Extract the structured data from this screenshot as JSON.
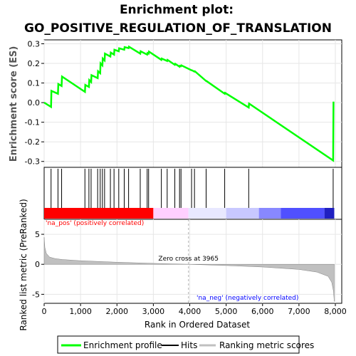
{
  "title_line1": "Enrichment plot:",
  "title_line2": "GO_POSITIVE_REGULATION_OF_TRANSLATION",
  "colors": {
    "enrichment_line": "#00ff00",
    "hits": "#000000",
    "metric_fill": "#c0c0c0",
    "pos_label": "#ff0000",
    "neg_label": "#0000ff"
  },
  "chart_data": [
    {
      "type": "line",
      "panel": "enrichment",
      "ylabel": "Enrichment score (ES)",
      "ylim": [
        -0.33,
        0.32
      ],
      "yticks": [
        -0.3,
        -0.2,
        -0.1,
        0.0,
        0.1,
        0.2,
        0.3
      ],
      "xlim": [
        0,
        8000
      ],
      "series": [
        {
          "name": "Enrichment profile",
          "x": [
            0,
            190,
            200,
            380,
            390,
            480,
            490,
            1120,
            1130,
            1230,
            1240,
            1290,
            1300,
            1470,
            1480,
            1540,
            1550,
            1600,
            1610,
            1660,
            1670,
            1820,
            1830,
            1920,
            1930,
            2050,
            2060,
            2200,
            2210,
            2320,
            2330,
            2640,
            2650,
            2830,
            2840,
            2870,
            2880,
            3220,
            3230,
            3380,
            3390,
            3590,
            3600,
            3720,
            3730,
            3760,
            3770,
            4050,
            4060,
            4130,
            4140,
            4450,
            4460,
            4960,
            4970,
            5620,
            5630,
            7940,
            7950
          ],
          "values": [
            0.0,
            -0.022,
            0.06,
            0.045,
            0.095,
            0.085,
            0.133,
            0.055,
            0.09,
            0.08,
            0.115,
            0.105,
            0.14,
            0.125,
            0.16,
            0.15,
            0.2,
            0.19,
            0.225,
            0.215,
            0.25,
            0.235,
            0.255,
            0.245,
            0.27,
            0.262,
            0.277,
            0.27,
            0.283,
            0.278,
            0.285,
            0.25,
            0.262,
            0.245,
            0.253,
            0.25,
            0.26,
            0.218,
            0.225,
            0.212,
            0.218,
            0.193,
            0.198,
            0.183,
            0.188,
            0.186,
            0.19,
            0.165,
            0.165,
            0.158,
            0.16,
            0.11,
            0.11,
            0.045,
            0.05,
            -0.025,
            -0.005,
            -0.295,
            0.005
          ]
        }
      ]
    },
    {
      "type": "scatter",
      "panel": "hits",
      "name": "Hits",
      "x": [
        190,
        380,
        480,
        1120,
        1230,
        1290,
        1470,
        1540,
        1600,
        1660,
        1820,
        1920,
        2050,
        2200,
        2320,
        2640,
        2830,
        2870,
        3220,
        3380,
        3590,
        3720,
        3760,
        4050,
        4130,
        4450,
        4960,
        5620,
        7940
      ]
    },
    {
      "type": "area",
      "panel": "ranked_metric",
      "name": "Ranking metric scores",
      "ylabel": "Ranked list metric (PreRanked)",
      "xlabel": "Rank in Ordered Dataset",
      "xlim": [
        0,
        8000
      ],
      "xticks": [
        0,
        1000,
        2000,
        3000,
        4000,
        5000,
        6000,
        7000,
        8000
      ],
      "ylim": [
        -6.5,
        7.5
      ],
      "yticks": [
        -5,
        0,
        5
      ],
      "x": [
        0,
        20,
        60,
        150,
        300,
        500,
        1000,
        2000,
        3000,
        3965,
        5000,
        6000,
        7000,
        7500,
        7800,
        7900,
        7950,
        7970
      ],
      "values": [
        4.5,
        2.8,
        1.8,
        1.2,
        0.95,
        0.8,
        0.6,
        0.35,
        0.15,
        0.0,
        -0.2,
        -0.45,
        -0.85,
        -1.3,
        -2.0,
        -3.0,
        -4.5,
        -6.2
      ],
      "zero_cross_label": "Zero cross at 3965",
      "zero_cross": 3965,
      "pos_label": "'na_pos' (positively correlated)",
      "neg_label": "'na_neg' (negatively correlated)"
    }
  ],
  "legend": {
    "items": [
      {
        "label": "Enrichment profile"
      },
      {
        "label": "Hits"
      },
      {
        "label": "Ranking metric scores"
      }
    ]
  }
}
